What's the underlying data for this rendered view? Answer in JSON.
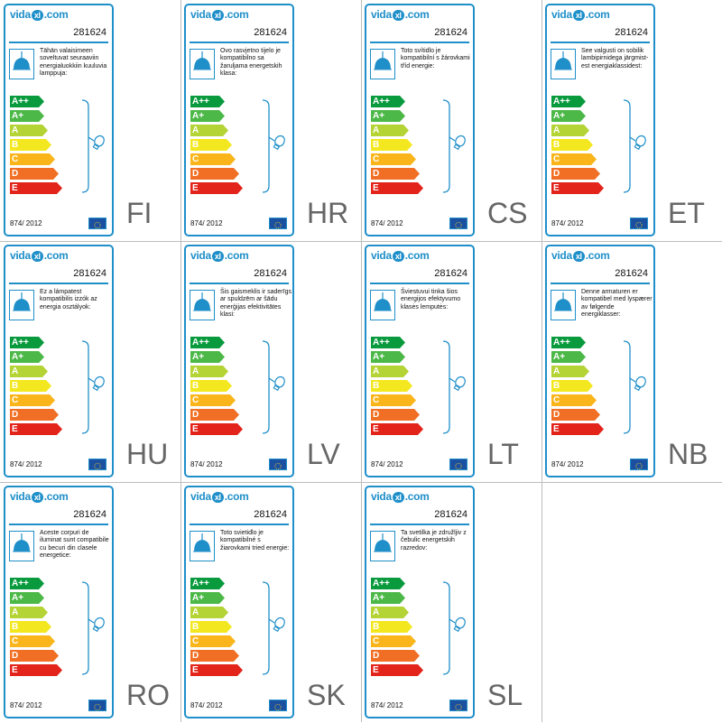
{
  "brand": {
    "prefix": "vida",
    "mark": "xl",
    "suffix": ".com",
    "brand_color": "#1f8fc9"
  },
  "product_code": "281624",
  "regulation": "874/ 2012",
  "energy_classes": [
    {
      "label": "A++",
      "color": "#0a9a3e"
    },
    {
      "label": "A+",
      "color": "#4cb848"
    },
    {
      "label": "A",
      "color": "#b4d334"
    },
    {
      "label": "B",
      "color": "#f3e81f"
    },
    {
      "label": "C",
      "color": "#f9b51a"
    },
    {
      "label": "D",
      "color": "#f06f24"
    },
    {
      "label": "E",
      "color": "#e3241b"
    }
  ],
  "icons": {
    "lamp": "pendant-lamp-icon",
    "bulb": "light-bulb-icon",
    "flag": "eu-flag-icon"
  },
  "labels": [
    {
      "lang": "FI",
      "text": "Tähän valaisimeen soveltuvat seuraaviin energialuokkiin kuuluvia lamppuja:"
    },
    {
      "lang": "HR",
      "text": "Ovo rasvjetno tijelo je kompatibilno sa žaruljama energetskih klasa:"
    },
    {
      "lang": "CS",
      "text": "Toto svítidlo je kompatibilní s žárovkami tříd energie:"
    },
    {
      "lang": "ET",
      "text": "See valgusti on sobilik lambipirnidega järgmist-est energiaklassidest:"
    },
    {
      "lang": "HU",
      "text": "Ez a lámpatest kompatibilis izzók az energia osztályok:"
    },
    {
      "lang": "LV",
      "text": "Šis gaismeklis ir saderīgs ar spuldzēm ar šādu enerģijas efektivitātes klasi:"
    },
    {
      "lang": "LT",
      "text": "Šviestuvui tinka šios energijos efektyvumo klasės lemputės:"
    },
    {
      "lang": "NB",
      "text": "Denne armaturen er kompatibel med lyspærer av følgende energiklasser:"
    },
    {
      "lang": "RO",
      "text": "Aceste corpuri de iluminat sunt compatibile cu becuri din clasele energetice:"
    },
    {
      "lang": "SK",
      "text": "Toto svietidlo je kompatibilné s žiarovkami tried energie:"
    },
    {
      "lang": "SL",
      "text": "Ta svetilka je združljiv z čebulic energetskih razredov:"
    }
  ]
}
